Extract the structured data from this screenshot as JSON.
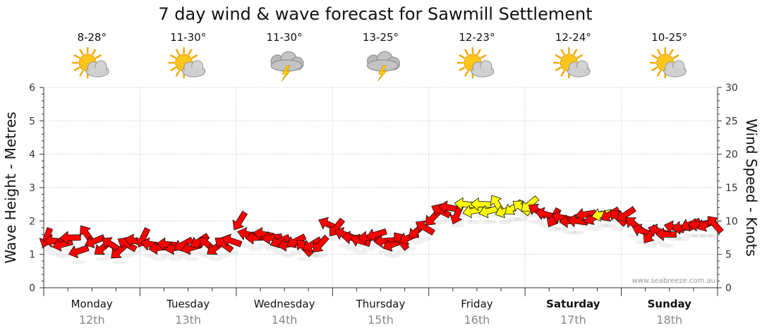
{
  "chart_data": {
    "type": "line",
    "title": "7 day wind & wave forecast for Sawmill Settlement",
    "ylabel_left": "Wave Height - Metres",
    "ylabel_right": "Wind Speed - Knots",
    "ylim_left": [
      0,
      6
    ],
    "ylim_right": [
      0,
      30
    ],
    "yticks_left": [
      "0",
      "1",
      "2",
      "3",
      "4",
      "5",
      "6"
    ],
    "yticks_right": [
      "0",
      "5",
      "10",
      "15",
      "20",
      "25",
      "30"
    ],
    "grid": true,
    "credit": "www.seabreeze.com.au",
    "days": [
      {
        "name": "Monday",
        "date": "12th",
        "temp": "8-28°",
        "icon": "sun-cloud-icon",
        "bold": false
      },
      {
        "name": "Tuesday",
        "date": "13th",
        "temp": "11-30°",
        "icon": "sun-cloud-icon",
        "bold": false
      },
      {
        "name": "Wednesday",
        "date": "14th",
        "temp": "11-30°",
        "icon": "storm-cloud-icon",
        "bold": false
      },
      {
        "name": "Thursday",
        "date": "15th",
        "temp": "13-25°",
        "icon": "storm-cloud-icon",
        "bold": false
      },
      {
        "name": "Friday",
        "date": "16th",
        "temp": "12-23°",
        "icon": "sun-cloud-icon",
        "bold": false
      },
      {
        "name": "Saturday",
        "date": "17th",
        "temp": "12-24°",
        "icon": "sun-cloud-icon",
        "bold": true
      },
      {
        "name": "Sunday",
        "date": "18th",
        "temp": "10-25°",
        "icon": "sun-cloud-icon",
        "bold": true
      }
    ],
    "wind_series": {
      "name": "Wind Speed",
      "units": "knots",
      "strong_color": "#ff0000",
      "light_color": "#ffff00",
      "values": [
        7.5,
        7,
        6.5,
        7.5,
        5.5,
        8,
        7,
        6,
        6.5,
        5.5,
        6.5,
        7,
        7.5,
        6.5,
        6,
        6.5,
        6,
        6.5,
        6,
        7,
        6.5,
        6,
        6.5,
        7,
        10,
        8,
        7.5,
        8,
        7.5,
        7,
        6.5,
        7,
        6,
        6.5,
        6.5,
        9.5,
        9,
        8,
        7.5,
        7,
        7.5,
        8,
        7,
        6.5,
        7,
        7.5,
        8.5,
        9,
        10.5,
        11.5,
        12,
        11,
        12.5,
        11.5,
        12.5,
        11.5,
        12.5,
        11.5,
        12,
        12,
        12.5,
        11.5,
        11,
        10.5,
        10.5,
        10,
        10,
        11,
        10.5,
        11,
        11,
        10.5,
        11,
        9.5,
        8.5,
        8,
        8.5,
        8,
        9,
        9,
        9.5,
        9.5,
        9.5,
        9.5
      ],
      "light_flags": [
        0,
        0,
        0,
        0,
        0,
        0,
        0,
        0,
        0,
        0,
        0,
        0,
        0,
        0,
        0,
        0,
        0,
        0,
        0,
        0,
        0,
        0,
        0,
        0,
        0,
        0,
        0,
        0,
        0,
        0,
        0,
        0,
        0,
        0,
        0,
        0,
        0,
        0,
        0,
        0,
        0,
        0,
        0,
        0,
        0,
        0,
        0,
        0,
        0,
        0,
        0,
        0,
        1,
        1,
        1,
        1,
        1,
        1,
        1,
        1,
        1,
        0,
        0,
        0,
        0,
        0,
        0,
        0,
        0,
        1,
        0,
        0,
        0,
        0,
        0,
        0,
        0,
        0,
        0,
        0,
        0,
        0,
        0,
        0
      ]
    }
  }
}
